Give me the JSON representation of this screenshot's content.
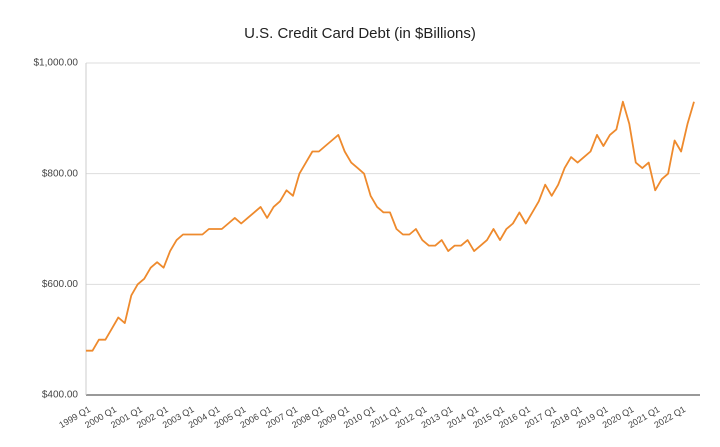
{
  "chart_data": {
    "type": "line",
    "title": "U.S. Credit Card Debt (in $Billions)",
    "categories": [
      "1999 Q1",
      null,
      null,
      null,
      "2000 Q1",
      null,
      null,
      null,
      "2001 Q1",
      null,
      null,
      null,
      "2002 Q1",
      null,
      null,
      null,
      "2003 Q1",
      null,
      null,
      null,
      "2004 Q1",
      null,
      null,
      null,
      "2005 Q1",
      null,
      null,
      null,
      "2006 Q1",
      null,
      null,
      null,
      "2007 Q1",
      null,
      null,
      null,
      "2008 Q1",
      null,
      null,
      null,
      "2009 Q1",
      null,
      null,
      null,
      "2010 Q1",
      null,
      null,
      null,
      "2011 Q1",
      null,
      null,
      null,
      "2012 Q1",
      null,
      null,
      null,
      "2013 Q1",
      null,
      null,
      null,
      "2014 Q1",
      null,
      null,
      null,
      "2015 Q1",
      null,
      null,
      null,
      "2016 Q1",
      null,
      null,
      null,
      "2017 Q1",
      null,
      null,
      null,
      "2018 Q1",
      null,
      null,
      null,
      "2019 Q1",
      null,
      null,
      null,
      "2020 Q1",
      null,
      null,
      null,
      "2021 Q1",
      null,
      null,
      null,
      "2022 Q1",
      null,
      null
    ],
    "values": [
      480,
      480,
      500,
      500,
      520,
      540,
      530,
      580,
      600,
      610,
      630,
      640,
      630,
      660,
      680,
      690,
      690,
      690,
      690,
      700,
      700,
      700,
      710,
      720,
      710,
      720,
      730,
      740,
      720,
      740,
      750,
      770,
      760,
      800,
      820,
      840,
      840,
      850,
      860,
      870,
      840,
      820,
      810,
      800,
      760,
      740,
      730,
      730,
      700,
      690,
      690,
      700,
      680,
      670,
      670,
      680,
      660,
      670,
      670,
      680,
      660,
      670,
      680,
      700,
      680,
      700,
      710,
      730,
      710,
      730,
      750,
      780,
      760,
      780,
      810,
      830,
      820,
      830,
      840,
      870,
      850,
      870,
      880,
      930,
      890,
      820,
      810,
      820,
      770,
      790,
      800,
      860,
      840,
      890,
      930
    ],
    "color": "#ee8a2d",
    "ylim": [
      400,
      1000
    ],
    "yticks": [
      {
        "value": 400,
        "label": "$400.00"
      },
      {
        "value": 600,
        "label": "$600.00"
      },
      {
        "value": 800,
        "label": "$800.00"
      },
      {
        "value": 1000,
        "label": "$1,000.00"
      }
    ],
    "grid": true
  }
}
